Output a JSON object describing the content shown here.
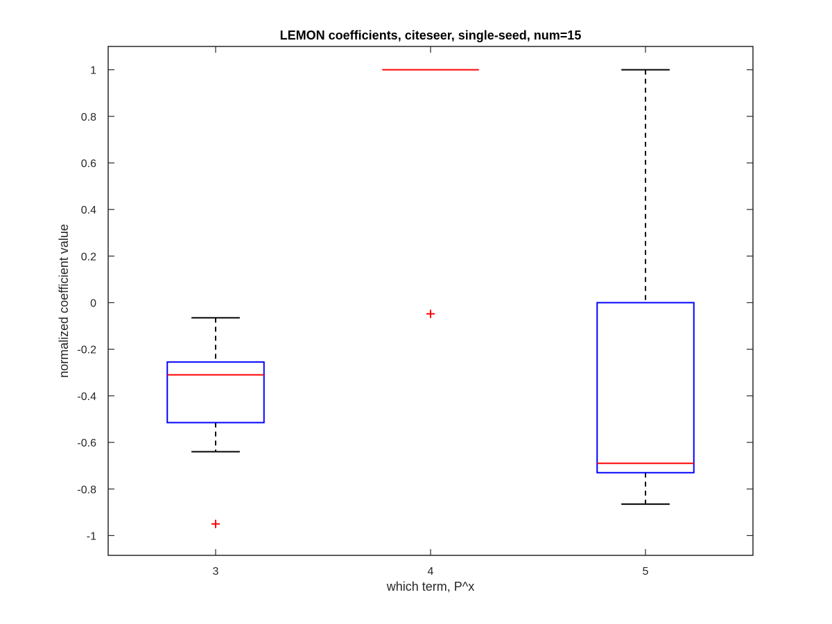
{
  "chart_data": {
    "type": "boxplot",
    "title": "LEMON coefficients, citeseer, single-seed, num=15",
    "xlabel": "which term, P^x",
    "ylabel": "normalized coefficient value",
    "categories": [
      "3",
      "4",
      "5"
    ],
    "ylim": [
      -1.085,
      1.1
    ],
    "xlim": [
      2.5,
      5.5
    ],
    "yticks": [
      1,
      0.8,
      0.6,
      0.4,
      0.2,
      0,
      -0.2,
      -0.4,
      -0.6,
      -0.8,
      -1
    ],
    "ytick_labels": [
      "1",
      "0.8",
      "0.6",
      "0.4",
      "0.2",
      "0",
      "-0.2",
      "-0.4",
      "-0.6",
      "-0.8",
      "-1"
    ],
    "grid": false,
    "boxes": [
      {
        "category": "3",
        "whisker_low": -0.64,
        "q1": -0.515,
        "median": -0.31,
        "q3": -0.255,
        "whisker_high": -0.065,
        "outliers": [
          -0.95
        ]
      },
      {
        "category": "4",
        "whisker_low": 1.0,
        "q1": 1.0,
        "median": 1.0,
        "q3": 1.0,
        "whisker_high": 1.0,
        "outliers": [
          -0.048
        ]
      },
      {
        "category": "5",
        "whisker_low": -0.865,
        "q1": -0.73,
        "median": -0.69,
        "q3": 0.0,
        "whisker_high": 1.0,
        "outliers": []
      }
    ],
    "colors": {
      "box": "#0000ff",
      "median": "#ff0000",
      "whisker": "#000000",
      "outlier": "#ff0000",
      "axes": "#262626"
    }
  }
}
